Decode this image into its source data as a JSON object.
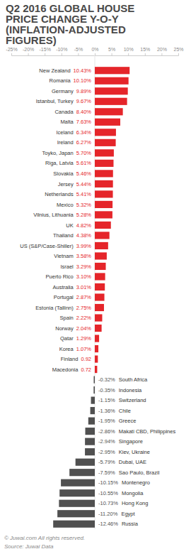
{
  "chart_data": {
    "type": "bar",
    "orientation": "horizontal",
    "title": "Q2 2016 GLOBAL HOUSE PRICE CHANGE Y-O-Y (INFLATION-ADJUSTED FIGURES)",
    "categories": [
      "New Zealand",
      "Romania",
      "Germany",
      "Istanbul, Turkey",
      "Canada",
      "Malta",
      "Iceland",
      "Ireland",
      "Toyko, Japan",
      "Riga, Latvia",
      "Slovakia",
      "Jersey",
      "Netherlands",
      "Mexico",
      "Vilnius, Lithuania",
      "UK",
      "Thailand",
      "US (S&P/Case-Shiller)",
      "Vietnam",
      "Israel",
      "Puerto Rico",
      "Australia",
      "Portugal",
      "Estonia (Tallinn)",
      "Spain",
      "Norway",
      "Qatar",
      "Korea",
      "Finland",
      "Macedonia",
      "South Africa",
      "Indonesia",
      "Switzerland",
      "Chile",
      "Greece",
      "Makati CBD, Philippines",
      "Singapore",
      "Kiev, Ukraine",
      "Dubai, UAE",
      "Sao Paulo, Brazil",
      "Montenegro",
      "Mongolia",
      "Hong Kong",
      "Egypt",
      "Russia"
    ],
    "values": [
      10.43,
      10.1,
      9.89,
      9.67,
      8.4,
      7.63,
      6.34,
      6.27,
      5.7,
      5.61,
      5.46,
      5.44,
      5.41,
      5.32,
      5.28,
      4.82,
      4.38,
      3.99,
      3.58,
      3.29,
      3.1,
      3.01,
      2.87,
      2.75,
      2.22,
      2.04,
      1.29,
      1.07,
      0.92,
      0.72,
      -0.32,
      -0.35,
      -1.15,
      -1.36,
      -1.95,
      -2.86,
      -2.94,
      -2.95,
      -5.79,
      -7.59,
      -10.15,
      -10.55,
      -10.73,
      -11.2,
      -12.46
    ],
    "value_labels": [
      "10.43%",
      "10.10%",
      "9.89%",
      "9.67%",
      "8.40%",
      "7.63%",
      "6.34%",
      "6.27%",
      "5.70%",
      "5.61%",
      "5.46%",
      "5.44%",
      "5.41%",
      "5.32%",
      "5.28%",
      "4.82%",
      "4.38%",
      "3.99%",
      "3.58%",
      "3.29%",
      "3.10%",
      "3.01%",
      "2.87%",
      "2.75%",
      "2.22%",
      "2.04%",
      "1.29%",
      "1.07%",
      "0.92",
      "0.72",
      "-0.32%",
      "-0.35%",
      "-1.15%",
      "-1.36%",
      "-1.95%",
      "-2.86%",
      "-2.94%",
      "-2.95%",
      "-5.79%",
      "-7.59%",
      "-10.15%",
      "-10.55%",
      "-10.73%",
      "-11.20%",
      "-12.46%"
    ],
    "colors": [
      "#e5252a",
      "#e5252a",
      "#e5252a",
      "#e5252a",
      "#e5252a",
      "#e5252a",
      "#e5252a",
      "#e5252a",
      "#e5252a",
      "#e5252a",
      "#e5252a",
      "#e5252a",
      "#e5252a",
      "#e5252a",
      "#e5252a",
      "#e5252a",
      "#e5252a",
      "#e5252a",
      "#e5252a",
      "#e5252a",
      "#e5252a",
      "#e5252a",
      "#e5252a",
      "#e5252a",
      "#e5252a",
      "#e5252a",
      "#e5252a",
      "#e5252a",
      "#e5252a",
      "#e5252a",
      "#505050",
      "#505050",
      "#505050",
      "#505050",
      "#505050",
      "#505050",
      "#505050",
      "#505050",
      "#505050",
      "#505050",
      "#505050",
      "#505050",
      "#505050",
      "#505050",
      "#505050"
    ],
    "xlim": [
      -25,
      25
    ],
    "xticks": [
      {
        "value": -25,
        "label": "-25%"
      },
      {
        "value": -20,
        "label": "-20%"
      },
      {
        "value": -15,
        "label": "-15%"
      },
      {
        "value": -10,
        "label": "-10%"
      },
      {
        "value": -5,
        "label": "-5%"
      },
      {
        "value": 0,
        "label": "0%"
      },
      {
        "value": 5,
        "label": "5%"
      },
      {
        "value": 10,
        "label": "10%"
      },
      {
        "value": 15,
        "label": "15%"
      },
      {
        "value": 20,
        "label": "20%"
      },
      {
        "value": 25,
        "label": "25%"
      }
    ],
    "grid": false,
    "data_labels": true,
    "annotations": [
      "© Juwai.com All rights reserved.",
      "Source: Juwai Data"
    ]
  }
}
